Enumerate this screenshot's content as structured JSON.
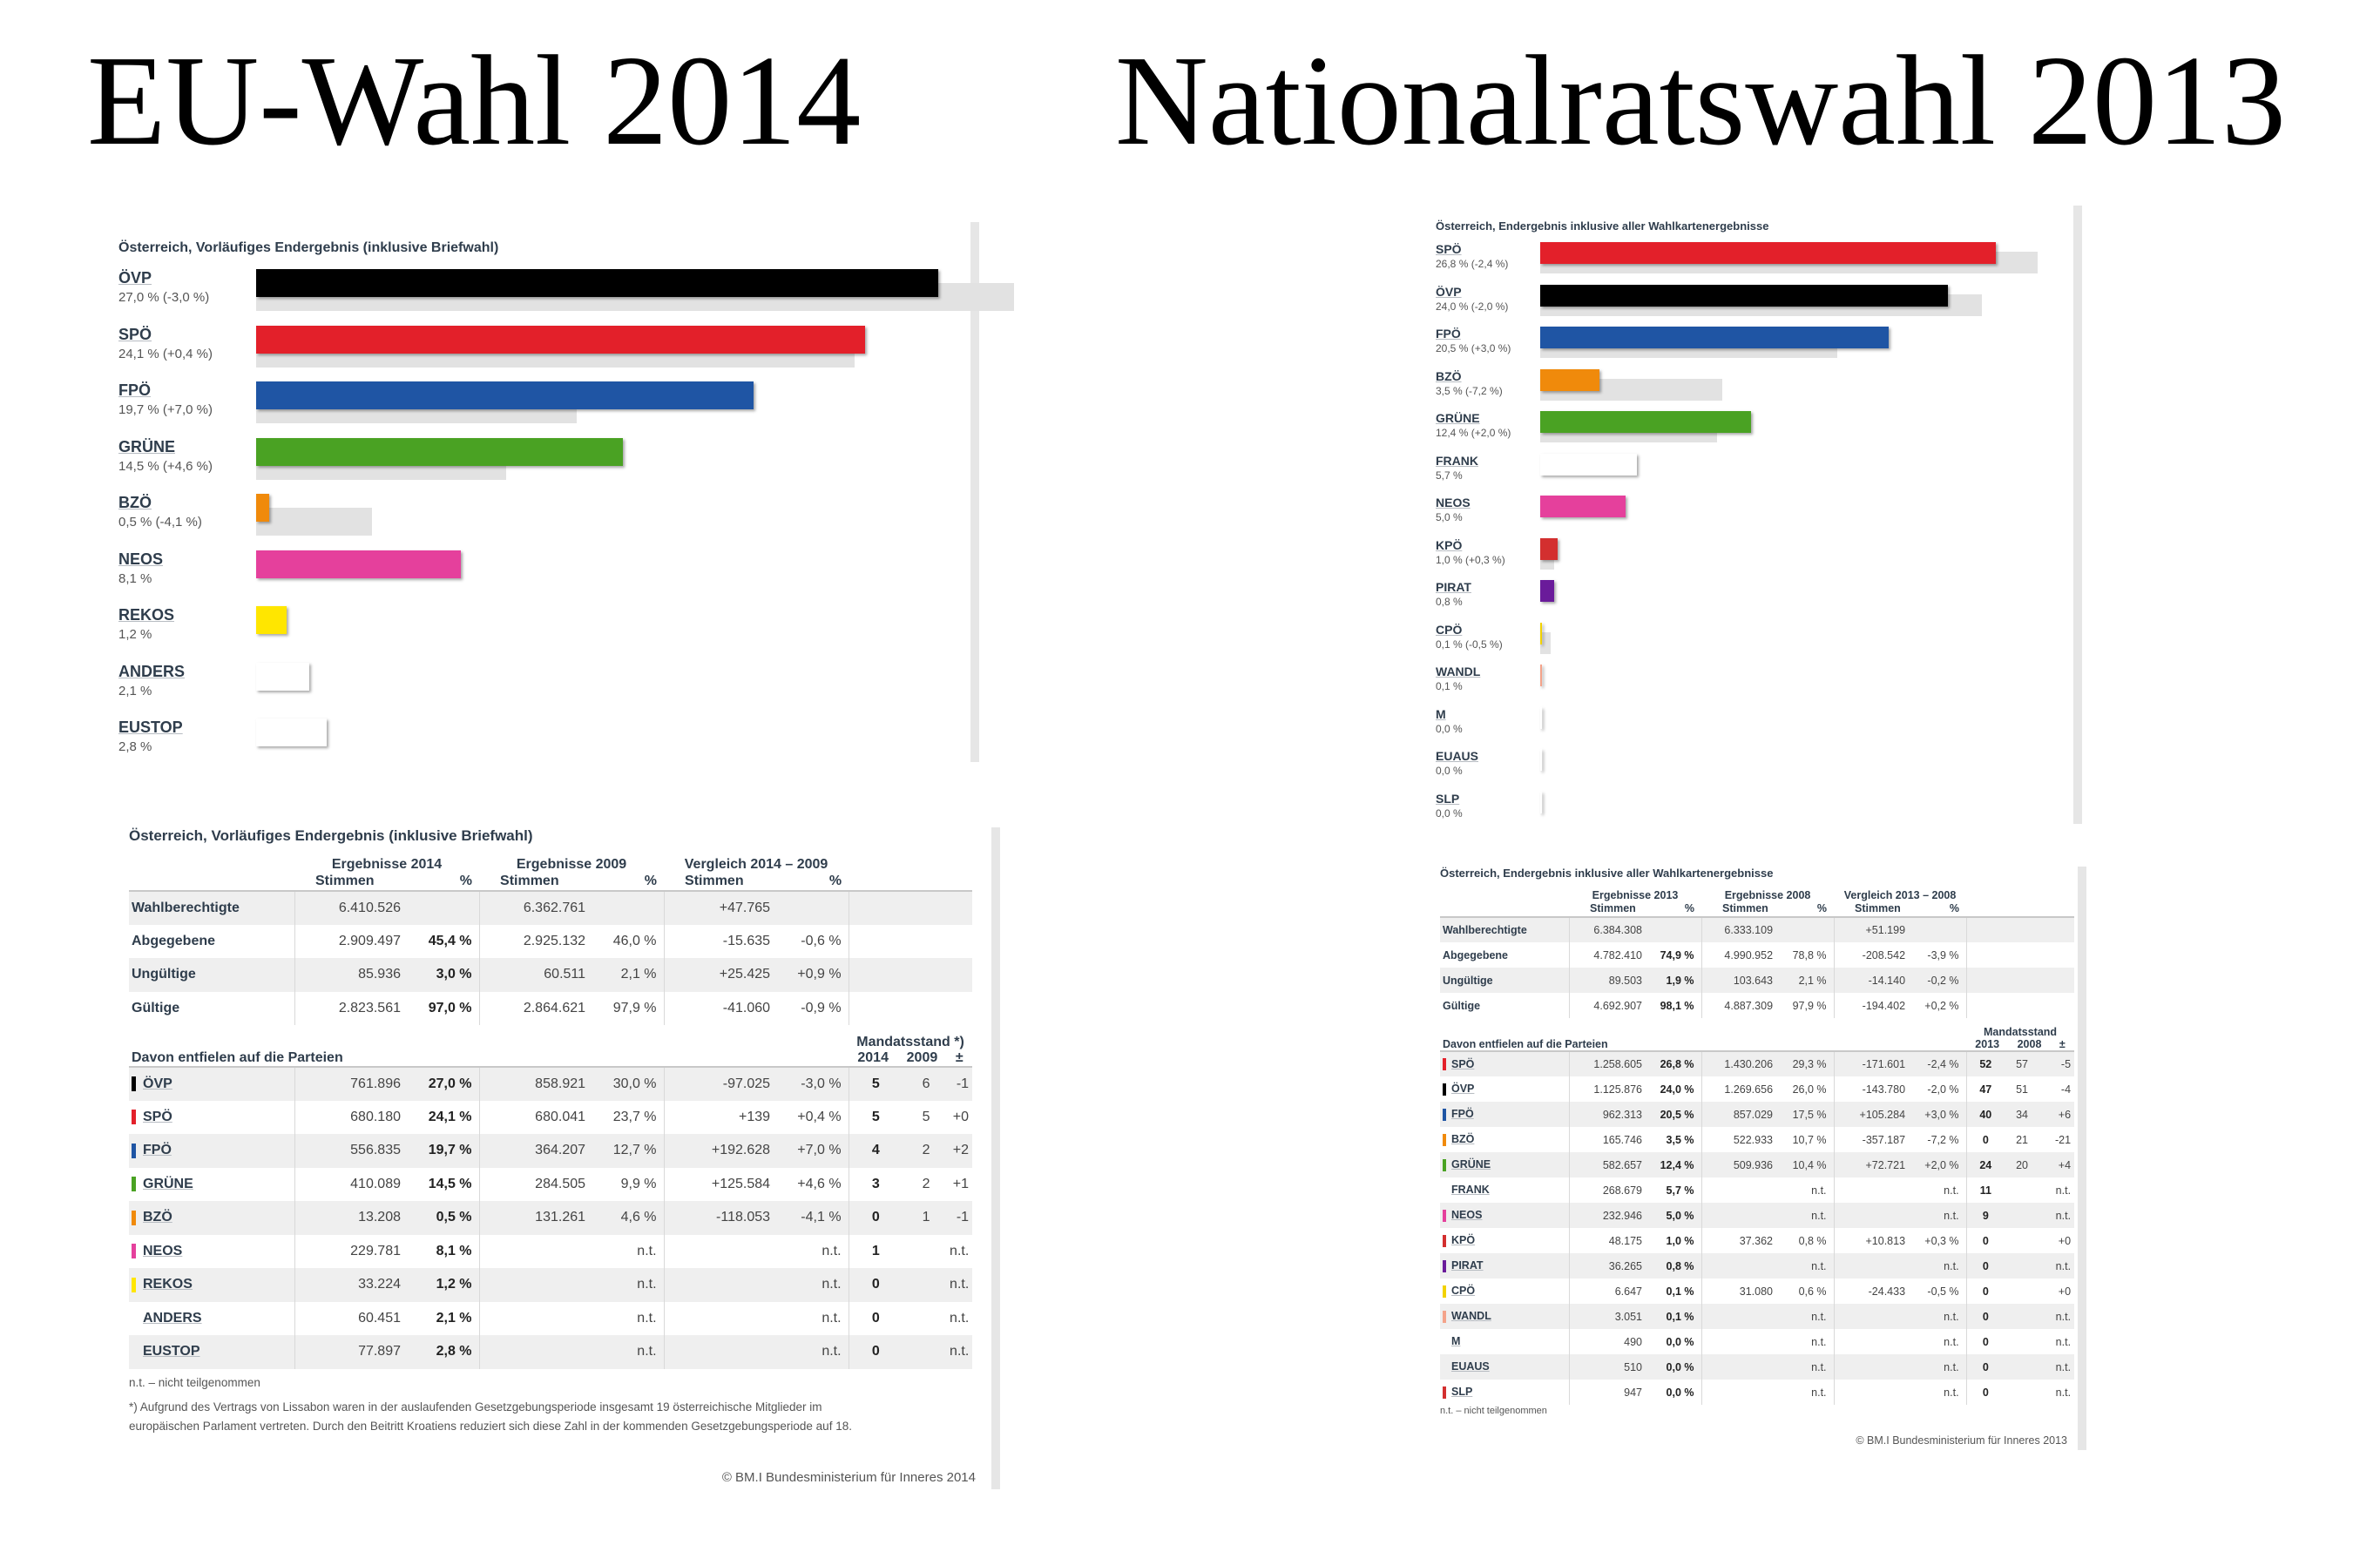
{
  "titles": {
    "left": "EU-Wahl 2014",
    "right": "Nationalratswahl 2013"
  },
  "chart_data": [
    {
      "type": "bar",
      "title": "Österreich, Vorläufiges Endergebnis (inklusive Briefwahl)",
      "xlim": [
        0,
        28
      ],
      "bars": [
        {
          "party": "ÖVP",
          "label": "27,0 % (-3,0 %)",
          "value": 27.0,
          "prev": 30.0,
          "color": "#000000"
        },
        {
          "party": "SPÖ",
          "label": "24,1 % (+0,4 %)",
          "value": 24.1,
          "prev": 23.7,
          "color": "#e3202a"
        },
        {
          "party": "FPÖ",
          "label": "19,7 % (+7,0 %)",
          "value": 19.7,
          "prev": 12.7,
          "color": "#1f55a4"
        },
        {
          "party": "GRÜNE",
          "label": "14,5 % (+4,6 %)",
          "value": 14.5,
          "prev": 9.9,
          "color": "#4aa223"
        },
        {
          "party": "BZÖ",
          "label": "0,5 % (-4,1 %)",
          "value": 0.5,
          "prev": 4.6,
          "color": "#f08a0b"
        },
        {
          "party": "NEOS",
          "label": "8,1 %",
          "value": 8.1,
          "prev": null,
          "color": "#e5409c"
        },
        {
          "party": "REKOS",
          "label": "1,2 %",
          "value": 1.2,
          "prev": null,
          "color": "#ffe600"
        },
        {
          "party": "ANDERS",
          "label": "2,1 %",
          "value": 2.1,
          "prev": null,
          "color": "#ffffff"
        },
        {
          "party": "EUSTOP",
          "label": "2,8 %",
          "value": 2.8,
          "prev": null,
          "color": "#ffffff"
        }
      ]
    },
    {
      "type": "bar",
      "title": "Österreich, Endergebnis inklusive aller Wahlkartenergebnisse",
      "xlim": [
        0,
        30
      ],
      "bars": [
        {
          "party": "SPÖ",
          "label": "26,8 % (-2,4 %)",
          "value": 26.8,
          "prev": 29.3,
          "color": "#e3202a"
        },
        {
          "party": "ÖVP",
          "label": "24,0 % (-2,0 %)",
          "value": 24.0,
          "prev": 26.0,
          "color": "#000000"
        },
        {
          "party": "FPÖ",
          "label": "20,5 % (+3,0 %)",
          "value": 20.5,
          "prev": 17.5,
          "color": "#1f55a4"
        },
        {
          "party": "BZÖ",
          "label": "3,5 % (-7,2 %)",
          "value": 3.5,
          "prev": 10.7,
          "color": "#f08a0b"
        },
        {
          "party": "GRÜNE",
          "label": "12,4 % (+2,0 %)",
          "value": 12.4,
          "prev": 10.4,
          "color": "#4aa223"
        },
        {
          "party": "FRANK",
          "label": "5,7 %",
          "value": 5.7,
          "prev": null,
          "color": "#ffffff"
        },
        {
          "party": "NEOS",
          "label": "5,0 %",
          "value": 5.0,
          "prev": null,
          "color": "#e5409c"
        },
        {
          "party": "KPÖ",
          "label": "1,0 % (+0,3 %)",
          "value": 1.0,
          "prev": 0.8,
          "color": "#d32f2f"
        },
        {
          "party": "PIRAT",
          "label": "0,8 %",
          "value": 0.8,
          "prev": null,
          "color": "#6a1b9a"
        },
        {
          "party": "CPÖ",
          "label": "0,1 % (-0,5 %)",
          "value": 0.1,
          "prev": 0.6,
          "color": "#f2d200"
        },
        {
          "party": "WANDL",
          "label": "0,1 %",
          "value": 0.1,
          "prev": null,
          "color": "#f4a38a"
        },
        {
          "party": "M",
          "label": "0,0 %",
          "value": 0.0,
          "prev": null,
          "color": "#ffffff"
        },
        {
          "party": "EUAUS",
          "label": "0,0 %",
          "value": 0.0,
          "prev": null,
          "color": "#ffffff"
        },
        {
          "party": "SLP",
          "label": "0,0 %",
          "value": 0.0,
          "prev": null,
          "color": "#ffffff"
        }
      ]
    }
  ],
  "tables": [
    {
      "title": "Österreich, Vorläufiges Endergebnis (inklusive Briefwahl)",
      "group_headers": [
        "Ergebnisse 2014",
        "Ergebnisse 2009",
        "Vergleich 2014 – 2009"
      ],
      "sub_headers": [
        "Stimmen",
        "%",
        "Stimmen",
        "%",
        "Stimmen",
        "%"
      ],
      "summary": [
        {
          "label": "Wahlberechtigte",
          "c": [
            "6.410.526",
            "",
            "6.362.761",
            "",
            "+47.765",
            ""
          ]
        },
        {
          "label": "Abgegebene",
          "c": [
            "2.909.497",
            "45,4 %",
            "2.925.132",
            "46,0 %",
            "-15.635",
            "-0,6 %"
          ]
        },
        {
          "label": "Ungültige",
          "c": [
            "85.936",
            "3,0 %",
            "60.511",
            "2,1 %",
            "+25.425",
            "+0,9 %"
          ]
        },
        {
          "label": "Gültige",
          "c": [
            "2.823.561",
            "97,0 %",
            "2.864.621",
            "97,9 %",
            "-41.060",
            "-0,9 %"
          ]
        }
      ],
      "parties_header": "Davon entfielen auf die Parteien",
      "seat_header": "Mandatsstand *)",
      "seat_sub": [
        "2014",
        "2009",
        "±"
      ],
      "parties": [
        {
          "name": "ÖVP",
          "color": "#000000",
          "c": [
            "761.896",
            "27,0 %",
            "858.921",
            "30,0 %",
            "-97.025",
            "-3,0 %",
            "5",
            "6",
            "-1"
          ]
        },
        {
          "name": "SPÖ",
          "color": "#e3202a",
          "c": [
            "680.180",
            "24,1 %",
            "680.041",
            "23,7 %",
            "+139",
            "+0,4 %",
            "5",
            "5",
            "+0"
          ]
        },
        {
          "name": "FPÖ",
          "color": "#1f55a4",
          "c": [
            "556.835",
            "19,7 %",
            "364.207",
            "12,7 %",
            "+192.628",
            "+7,0 %",
            "4",
            "2",
            "+2"
          ]
        },
        {
          "name": "GRÜNE",
          "color": "#4aa223",
          "c": [
            "410.089",
            "14,5 %",
            "284.505",
            "9,9 %",
            "+125.584",
            "+4,6 %",
            "3",
            "2",
            "+1"
          ]
        },
        {
          "name": "BZÖ",
          "color": "#f08a0b",
          "c": [
            "13.208",
            "0,5 %",
            "131.261",
            "4,6 %",
            "-118.053",
            "-4,1 %",
            "0",
            "1",
            "-1"
          ]
        },
        {
          "name": "NEOS",
          "color": "#e5409c",
          "c": [
            "229.781",
            "8,1 %",
            "",
            "n.t.",
            "",
            "n.t.",
            "1",
            "",
            "n.t."
          ]
        },
        {
          "name": "REKOS",
          "color": "#ffe600",
          "c": [
            "33.224",
            "1,2 %",
            "",
            "n.t.",
            "",
            "n.t.",
            "0",
            "",
            "n.t."
          ]
        },
        {
          "name": "ANDERS",
          "color": "#ffffff",
          "c": [
            "60.451",
            "2,1 %",
            "",
            "n.t.",
            "",
            "n.t.",
            "0",
            "",
            "n.t."
          ]
        },
        {
          "name": "EUSTOP",
          "color": "#ffffff",
          "c": [
            "77.897",
            "2,8 %",
            "",
            "n.t.",
            "",
            "n.t.",
            "0",
            "",
            "n.t."
          ]
        }
      ],
      "notes": [
        "n.t. – nicht teilgenommen",
        "*) Aufgrund des Vertrags von Lissabon waren in der auslaufenden Gesetzgebungsperiode insgesamt 19 österreichische Mitglieder im",
        "europäischen Parlament vertreten. Durch den Beitritt Kroatiens reduziert sich diese Zahl in der kommenden Gesetzgebungsperiode auf 18."
      ],
      "copyright": "© BM.I Bundesministerium für Inneres 2014"
    },
    {
      "title": "Österreich, Endergebnis inklusive aller Wahlkartenergebnisse",
      "group_headers": [
        "Ergebnisse 2013",
        "Ergebnisse 2008",
        "Vergleich 2013 – 2008"
      ],
      "sub_headers": [
        "Stimmen",
        "%",
        "Stimmen",
        "%",
        "Stimmen",
        "%"
      ],
      "summary": [
        {
          "label": "Wahlberechtigte",
          "c": [
            "6.384.308",
            "",
            "6.333.109",
            "",
            "+51.199",
            ""
          ]
        },
        {
          "label": "Abgegebene",
          "c": [
            "4.782.410",
            "74,9 %",
            "4.990.952",
            "78,8 %",
            "-208.542",
            "-3,9 %"
          ]
        },
        {
          "label": "Ungültige",
          "c": [
            "89.503",
            "1,9 %",
            "103.643",
            "2,1 %",
            "-14.140",
            "-0,2 %"
          ]
        },
        {
          "label": "Gültige",
          "c": [
            "4.692.907",
            "98,1 %",
            "4.887.309",
            "97,9 %",
            "-194.402",
            "+0,2 %"
          ]
        }
      ],
      "parties_header": "Davon entfielen auf die Parteien",
      "seat_header": "Mandatsstand",
      "seat_sub": [
        "2013",
        "2008",
        "±"
      ],
      "parties": [
        {
          "name": "SPÖ",
          "color": "#e3202a",
          "c": [
            "1.258.605",
            "26,8 %",
            "1.430.206",
            "29,3 %",
            "-171.601",
            "-2,4 %",
            "52",
            "57",
            "-5"
          ]
        },
        {
          "name": "ÖVP",
          "color": "#000000",
          "c": [
            "1.125.876",
            "24,0 %",
            "1.269.656",
            "26,0 %",
            "-143.780",
            "-2,0 %",
            "47",
            "51",
            "-4"
          ]
        },
        {
          "name": "FPÖ",
          "color": "#1f55a4",
          "c": [
            "962.313",
            "20,5 %",
            "857.029",
            "17,5 %",
            "+105.284",
            "+3,0 %",
            "40",
            "34",
            "+6"
          ]
        },
        {
          "name": "BZÖ",
          "color": "#f08a0b",
          "c": [
            "165.746",
            "3,5 %",
            "522.933",
            "10,7 %",
            "-357.187",
            "-7,2 %",
            "0",
            "21",
            "-21"
          ]
        },
        {
          "name": "GRÜNE",
          "color": "#4aa223",
          "c": [
            "582.657",
            "12,4 %",
            "509.936",
            "10,4 %",
            "+72.721",
            "+2,0 %",
            "24",
            "20",
            "+4"
          ]
        },
        {
          "name": "FRANK",
          "color": "#ffffff",
          "c": [
            "268.679",
            "5,7 %",
            "",
            "n.t.",
            "",
            "n.t.",
            "11",
            "",
            "n.t."
          ]
        },
        {
          "name": "NEOS",
          "color": "#e5409c",
          "c": [
            "232.946",
            "5,0 %",
            "",
            "n.t.",
            "",
            "n.t.",
            "9",
            "",
            "n.t."
          ]
        },
        {
          "name": "KPÖ",
          "color": "#d32f2f",
          "c": [
            "48.175",
            "1,0 %",
            "37.362",
            "0,8 %",
            "+10.813",
            "+0,3 %",
            "0",
            "",
            "+0"
          ]
        },
        {
          "name": "PIRAT",
          "color": "#6a1b9a",
          "c": [
            "36.265",
            "0,8 %",
            "",
            "n.t.",
            "",
            "n.t.",
            "0",
            "",
            "n.t."
          ]
        },
        {
          "name": "CPÖ",
          "color": "#f2d200",
          "c": [
            "6.647",
            "0,1 %",
            "31.080",
            "0,6 %",
            "-24.433",
            "-0,5 %",
            "0",
            "",
            "+0"
          ]
        },
        {
          "name": "WANDL",
          "color": "#f4a38a",
          "c": [
            "3.051",
            "0,1 %",
            "",
            "n.t.",
            "",
            "n.t.",
            "0",
            "",
            "n.t."
          ]
        },
        {
          "name": "M",
          "color": "#ffffff",
          "c": [
            "490",
            "0,0 %",
            "",
            "n.t.",
            "",
            "n.t.",
            "0",
            "",
            "n.t."
          ]
        },
        {
          "name": "EUAUS",
          "color": "#ffffff",
          "c": [
            "510",
            "0,0 %",
            "",
            "n.t.",
            "",
            "n.t.",
            "0",
            "",
            "n.t."
          ]
        },
        {
          "name": "SLP",
          "color": "#d32f2f",
          "c": [
            "947",
            "0,0 %",
            "",
            "n.t.",
            "",
            "n.t.",
            "0",
            "",
            "n.t."
          ]
        }
      ],
      "notes": [
        "n.t. – nicht teilgenommen"
      ],
      "copyright": "© BM.I Bundesministerium für Inneres 2013"
    }
  ]
}
